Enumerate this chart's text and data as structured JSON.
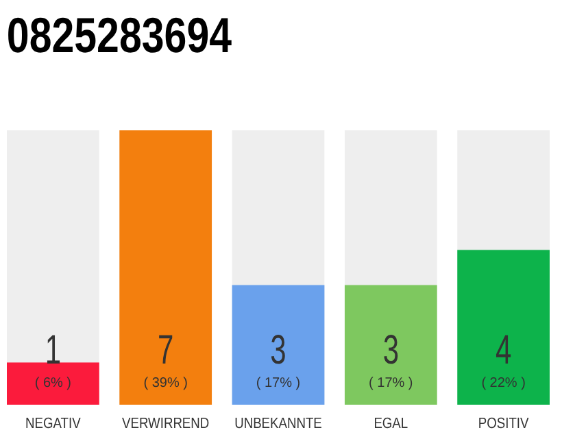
{
  "chart_data": {
    "type": "bar",
    "title": "0825283694",
    "categories": [
      "NEGATIV",
      "VERWIRREND",
      "UNBEKANNTE",
      "EGAL",
      "POSITIV"
    ],
    "values": [
      6,
      39,
      17,
      17,
      22
    ],
    "colors": [
      "#fb1b3c",
      "#f37f0e",
      "#6aa1ec",
      "#7ec85f",
      "#0db34b"
    ],
    "value_labels": [
      "( 6% )",
      "( 39% )",
      "( 17% )",
      "( 17% )",
      "( 22% )"
    ],
    "annotations": [
      "1",
      "7",
      "3",
      "3",
      "4"
    ],
    "ylim": [
      0,
      39
    ],
    "tick_labels": "x"
  }
}
